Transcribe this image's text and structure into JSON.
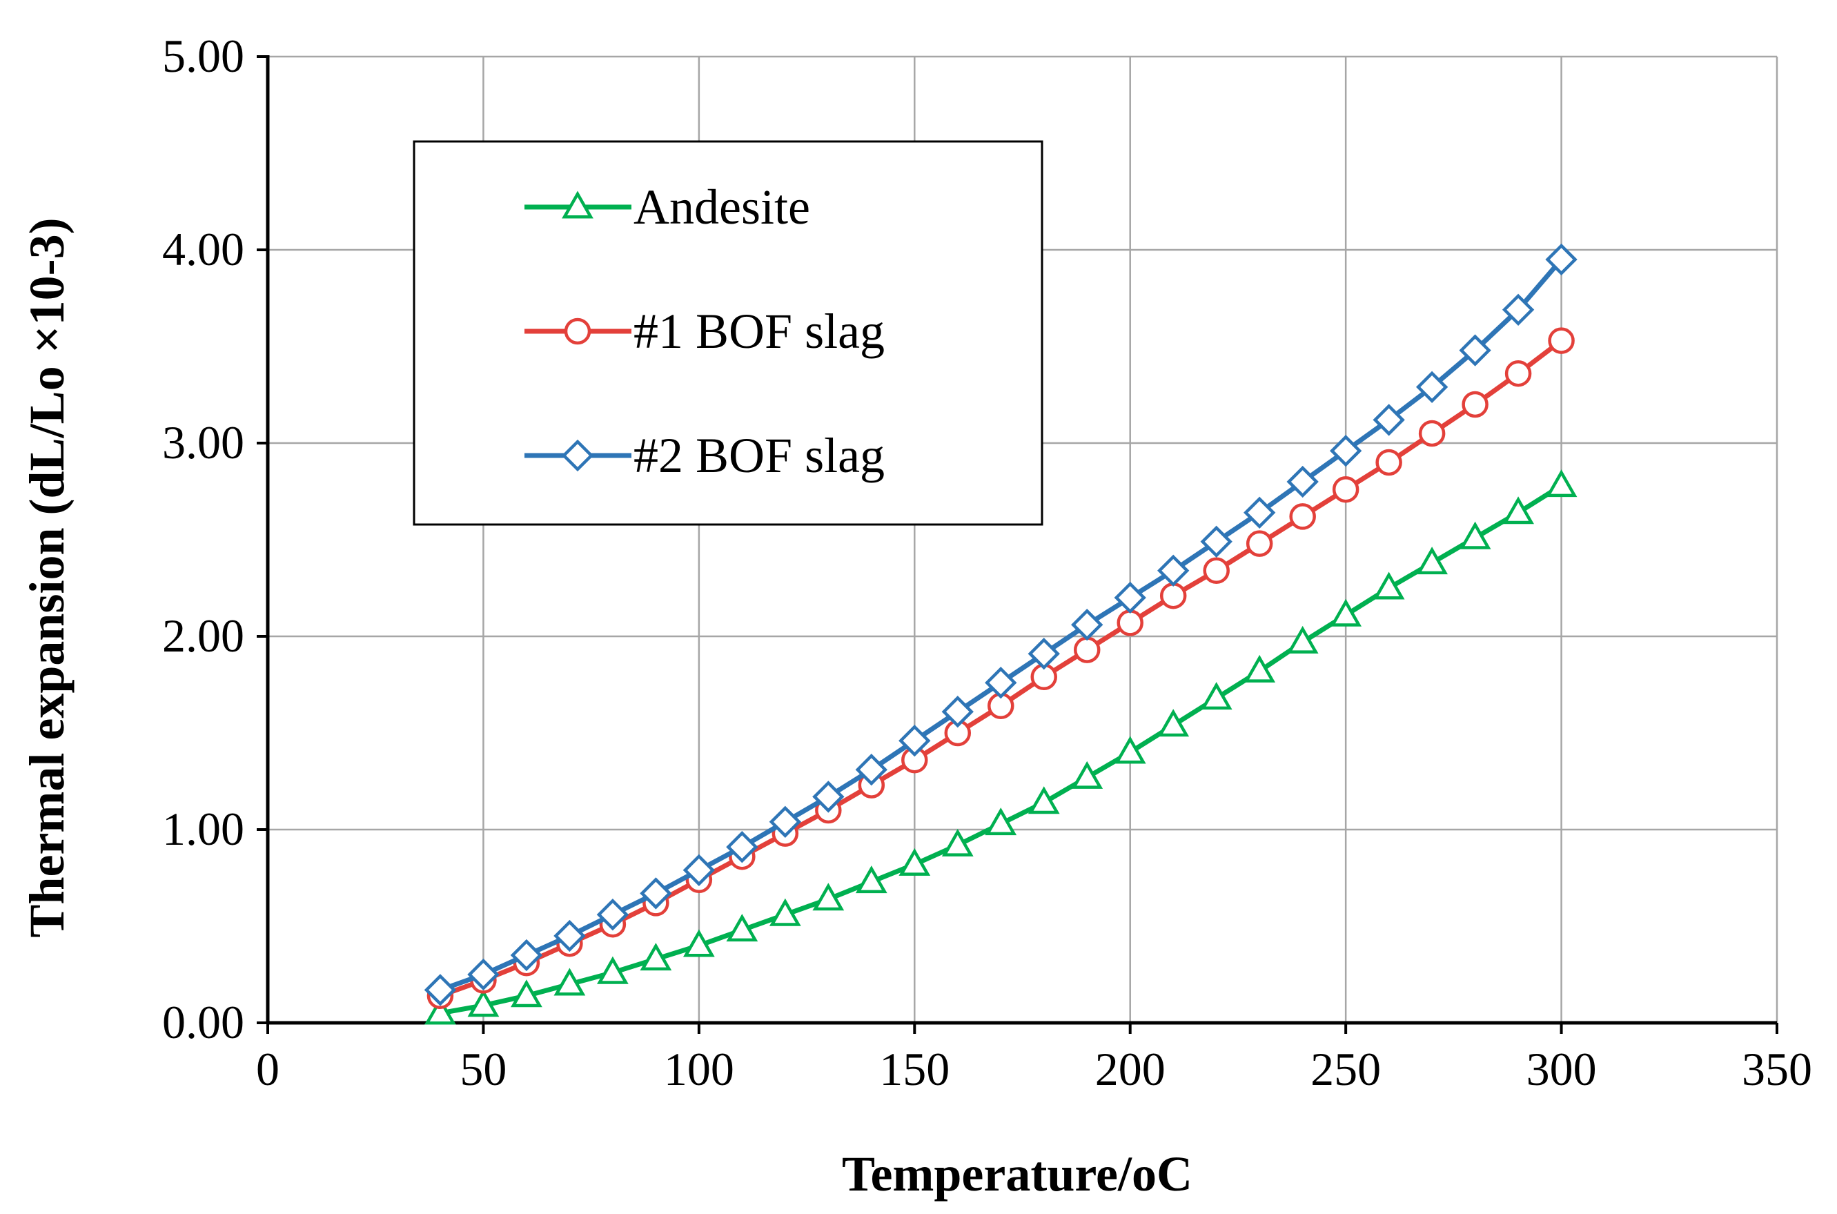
{
  "chart_data": {
    "type": "line",
    "title": "",
    "xlabel": "Temperature/oC",
    "ylabel": "Thermal expansion (dL/Lo ×10-3)",
    "xlim": [
      0,
      350
    ],
    "ylim": [
      0,
      5
    ],
    "xticks": [
      0,
      50,
      100,
      150,
      200,
      250,
      300,
      350
    ],
    "yticks": [
      0,
      1,
      2,
      3,
      4,
      5
    ],
    "xtick_labels": [
      "0",
      "50",
      "100",
      "150",
      "200",
      "250",
      "300",
      "350"
    ],
    "ytick_labels": [
      "0.00",
      "1.00",
      "2.00",
      "3.00",
      "4.00",
      "5.00"
    ],
    "grid": true,
    "legend_position": "top-left",
    "series": [
      {
        "name": "Andesite",
        "color": "#00b050",
        "marker": "triangle",
        "x": [
          40,
          50,
          60,
          70,
          80,
          90,
          100,
          110,
          120,
          130,
          140,
          150,
          160,
          170,
          180,
          190,
          200,
          210,
          220,
          230,
          240,
          250,
          260,
          270,
          280,
          290,
          300
        ],
        "y": [
          0.05,
          0.09,
          0.14,
          0.2,
          0.26,
          0.33,
          0.4,
          0.48,
          0.56,
          0.64,
          0.73,
          0.82,
          0.92,
          1.03,
          1.14,
          1.27,
          1.4,
          1.54,
          1.68,
          1.82,
          1.97,
          2.11,
          2.25,
          2.38,
          2.51,
          2.64,
          2.78
        ]
      },
      {
        "name": "#1 BOF slag",
        "color": "#e3403a",
        "marker": "circle",
        "x": [
          40,
          50,
          60,
          70,
          80,
          90,
          100,
          110,
          120,
          130,
          140,
          150,
          160,
          170,
          180,
          190,
          200,
          210,
          220,
          230,
          240,
          250,
          260,
          270,
          280,
          290,
          300
        ],
        "y": [
          0.14,
          0.22,
          0.31,
          0.41,
          0.51,
          0.62,
          0.74,
          0.86,
          0.98,
          1.1,
          1.23,
          1.36,
          1.5,
          1.64,
          1.79,
          1.93,
          2.07,
          2.21,
          2.34,
          2.48,
          2.62,
          2.76,
          2.9,
          3.05,
          3.2,
          3.36,
          3.53
        ]
      },
      {
        "name": "#2 BOF slag",
        "color": "#2e75b6",
        "marker": "diamond",
        "x": [
          40,
          50,
          60,
          70,
          80,
          90,
          100,
          110,
          120,
          130,
          140,
          150,
          160,
          170,
          180,
          190,
          200,
          210,
          220,
          230,
          240,
          250,
          260,
          270,
          280,
          290,
          300
        ],
        "y": [
          0.17,
          0.25,
          0.35,
          0.45,
          0.56,
          0.67,
          0.79,
          0.91,
          1.04,
          1.17,
          1.31,
          1.46,
          1.61,
          1.76,
          1.91,
          2.06,
          2.2,
          2.34,
          2.49,
          2.64,
          2.8,
          2.96,
          3.12,
          3.29,
          3.48,
          3.69,
          3.95
        ]
      }
    ]
  }
}
